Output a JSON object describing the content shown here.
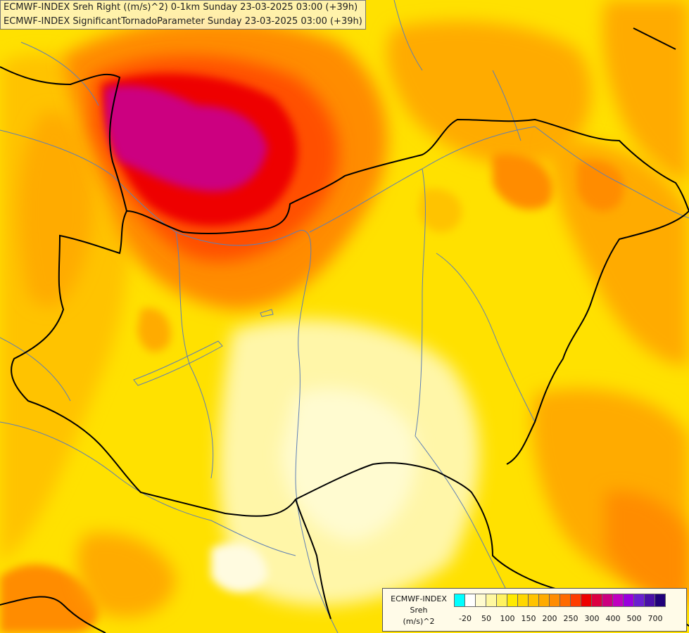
{
  "title": {
    "line1": "ECMWF-INDEX Sreh Right ((m/s)^2) 0-1km Sunday 23-03-2025 03:00 (+39h)",
    "line2": "ECMWF-INDEX SignificantTornadoParameter Sunday 23-03-2025 03:00 (+39h)"
  },
  "legend": {
    "model": "ECMWF-INDEX",
    "variable": "Sreh",
    "unit": "(m/s)^2",
    "swatch_colors": [
      "#00ffff",
      "#ffffff",
      "#fffbd0",
      "#fff8a0",
      "#fff260",
      "#ffea00",
      "#ffd700",
      "#ffc300",
      "#ffab00",
      "#ff8c00",
      "#ff6a00",
      "#ff3c00",
      "#ee0000",
      "#dc0040",
      "#cc0080",
      "#c000c0",
      "#9900dd",
      "#6a1fd0",
      "#4a10a8",
      "#20007a"
    ],
    "tick_labels": [
      "-20",
      "50",
      "100",
      "150",
      "200",
      "250",
      "300",
      "400",
      "500",
      "700"
    ]
  },
  "colors": {
    "low": "#fff8a0",
    "mid": "#ffd700",
    "high": "#ff8c00",
    "very_high": "#ee0000",
    "extreme": "#cc0080"
  }
}
